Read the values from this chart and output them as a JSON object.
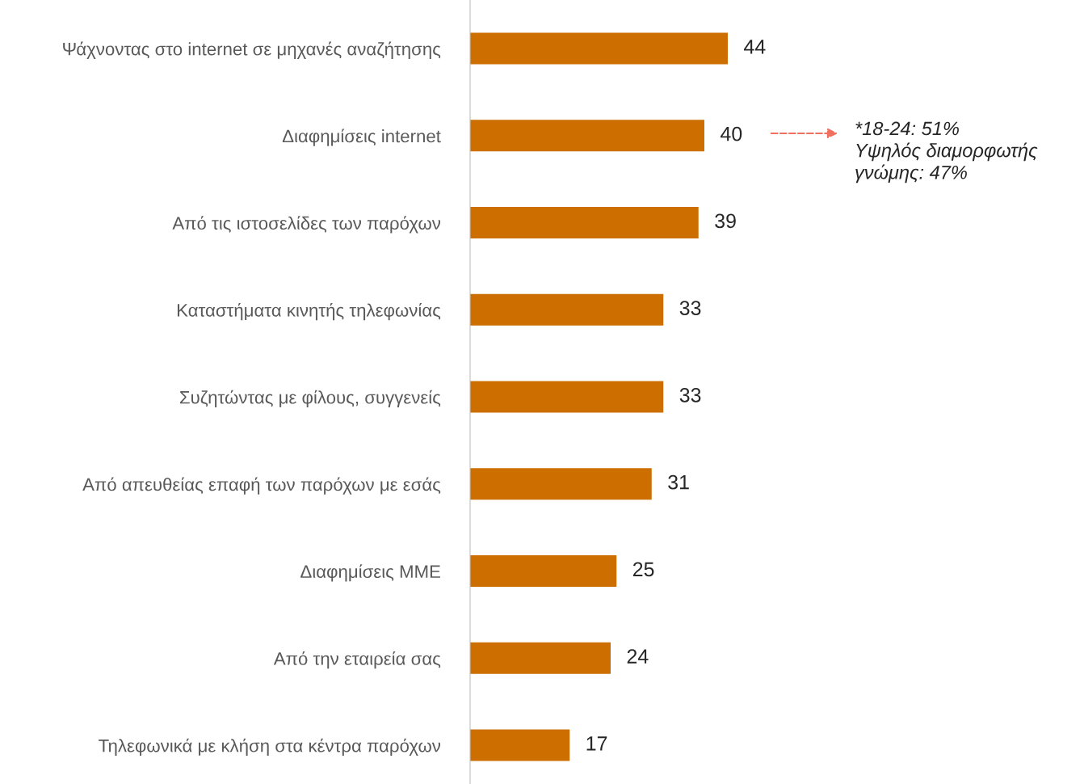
{
  "chart_data": {
    "type": "bar",
    "orientation": "horizontal",
    "categories": [
      "Ψάχνοντας στο internet σε μηχανές αναζήτησης",
      "Διαφημίσεις internet",
      "Από τις ιστοσελίδες των παρόχων",
      "Καταστήματα κινητής τηλεφωνίας",
      "Συζητώντας με φίλους, συγγενείς",
      "Από απευθείας επαφή των παρόχων με εσάς",
      "Διαφημίσεις ΜΜΕ",
      "Από την εταιρεία σας",
      "Τηλεφωνικά με κλήση στα κέντρα παρόχων"
    ],
    "values": [
      44,
      40,
      39,
      33,
      33,
      31,
      25,
      24,
      17
    ],
    "color": "#cc6e00",
    "tick_labels": "y",
    "data_labels": true,
    "grid": false,
    "annotations": [
      "*18-24: 51%\nΥψηλός διαμορφωτής\nγνώμης: 47%"
    ]
  }
}
